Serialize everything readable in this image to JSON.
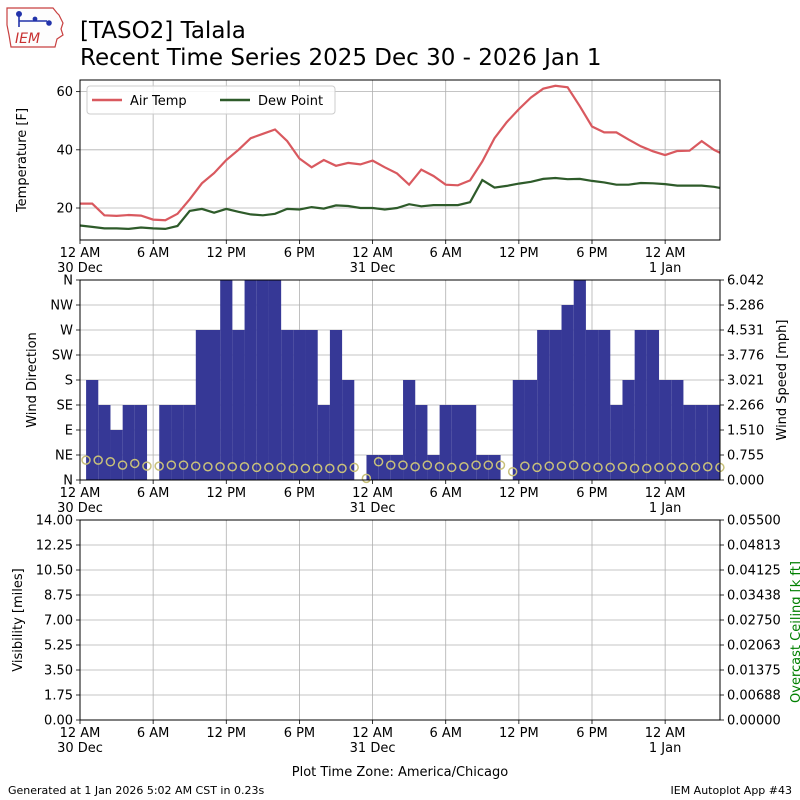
{
  "header": {
    "logo_text": "IEM",
    "title_line1": "[TASO2] Talala",
    "title_line2": "Recent Time Series 2025 Dec 30 - 2026 Jan 1"
  },
  "footer": {
    "generated": "Generated at 1 Jan 2026 5:02 AM CST in 0.23s",
    "app": "IEM Autoplot App #43"
  },
  "colors": {
    "air_temp": "#d9595f",
    "dew_point": "#2e5b2a",
    "wind_bar": "#363896",
    "wind_speed_marker": "#c8c07a",
    "ceiling_label": "#008000",
    "grid": "#b0b0b0"
  },
  "chart_data": [
    {
      "type": "line",
      "panel": "temperature",
      "ylabel": "Temperature [F]",
      "xlabel": "",
      "ylim": [
        9,
        64
      ],
      "xlim": [
        0,
        52.5
      ],
      "yticks": [
        20,
        40,
        60
      ],
      "xtick_labels": [
        {
          "h": 0,
          "label": "12 AM",
          "date": "30 Dec"
        },
        {
          "h": 6,
          "label": "6 AM"
        },
        {
          "h": 12,
          "label": "12 PM"
        },
        {
          "h": 18,
          "label": "6 PM"
        },
        {
          "h": 24,
          "label": "12 AM",
          "date": "31 Dec"
        },
        {
          "h": 30,
          "label": "6 AM"
        },
        {
          "h": 36,
          "label": "12 PM"
        },
        {
          "h": 42,
          "label": "6 PM"
        },
        {
          "h": 48,
          "label": "12 AM",
          "date": "1 Jan"
        }
      ],
      "grid": true,
      "legend": {
        "position": "top-left",
        "columns": 2
      },
      "series": [
        {
          "name": "Air Temp",
          "x": [
            0,
            1,
            2,
            3,
            4,
            5,
            6,
            7,
            8,
            9,
            10,
            11,
            12,
            13,
            14,
            15,
            16,
            17,
            18,
            19,
            20,
            21,
            22,
            23,
            24,
            25,
            26,
            27,
            28,
            29,
            30,
            31,
            32,
            33,
            34,
            35,
            36,
            37,
            38,
            39,
            40,
            41,
            42,
            43,
            44,
            45,
            46,
            47,
            48,
            49,
            50,
            51,
            52,
            52.5
          ],
          "y": [
            21.5,
            21.5,
            17.5,
            17.3,
            17.6,
            17.4,
            16,
            15.8,
            18,
            23,
            28.5,
            32,
            36.5,
            40,
            44,
            45.5,
            47,
            43,
            37,
            34,
            36.5,
            34.5,
            35.5,
            35,
            36.3,
            34,
            31.9,
            28,
            33.2,
            31,
            28,
            27.8,
            29.5,
            36,
            44,
            49.5,
            54,
            58,
            61,
            62,
            61.5,
            55,
            48,
            46,
            46,
            43.5,
            41.2,
            39.5,
            38.2,
            39.6,
            39.7,
            43,
            40,
            39
          ]
        },
        {
          "name": "Dew Point",
          "x": [
            0,
            1,
            2,
            3,
            4,
            5,
            6,
            7,
            8,
            9,
            10,
            11,
            12,
            13,
            14,
            15,
            16,
            17,
            18,
            19,
            20,
            21,
            22,
            23,
            24,
            25,
            26,
            27,
            28,
            29,
            30,
            31,
            32,
            33,
            34,
            35,
            36,
            37,
            38,
            39,
            40,
            41,
            42,
            43,
            44,
            45,
            46,
            47,
            48,
            49,
            50,
            51,
            52,
            52.5
          ],
          "y": [
            14,
            13.5,
            13,
            13,
            12.8,
            13.3,
            13,
            12.8,
            13.8,
            19,
            19.7,
            18.4,
            19.7,
            18.7,
            17.8,
            17.5,
            18,
            19.7,
            19.5,
            20.3,
            19.8,
            20.9,
            20.7,
            20,
            20,
            19.5,
            20,
            21.3,
            20.6,
            21,
            21,
            21,
            22,
            29.6,
            27,
            27.6,
            28.4,
            29,
            30,
            30.3,
            29.9,
            30,
            29.3,
            28.8,
            28,
            28,
            28.6,
            28.5,
            28.2,
            27.7,
            27.7,
            27.7,
            27.3,
            26.9
          ]
        }
      ]
    },
    {
      "type": "bar",
      "panel": "wind",
      "ylabel": "Wind Direction",
      "ylabel_right": "Wind Speed [mph]",
      "ylim": [
        0,
        360
      ],
      "ylim_right": [
        0,
        6.042
      ],
      "xlim": [
        0,
        52.5
      ],
      "yticks_left": [
        "N",
        "NE",
        "E",
        "SE",
        "S",
        "SW",
        "W",
        "NW",
        "N"
      ],
      "yticks_right": [
        "0.000",
        "0.755",
        "1.510",
        "2.266",
        "3.021",
        "3.776",
        "4.531",
        "5.286",
        "6.042"
      ],
      "grid": true,
      "bars": [
        {
          "x": 0,
          "dir": 0
        },
        {
          "x": 0.5,
          "dir": 180
        },
        {
          "x": 1.5,
          "dir": 135
        },
        {
          "x": 2.5,
          "dir": 90
        },
        {
          "x": 3.5,
          "dir": 135
        },
        {
          "x": 4.5,
          "dir": 135
        },
        {
          "x": 5.5,
          "dir": 0
        },
        {
          "x": 6.5,
          "dir": 135
        },
        {
          "x": 7.5,
          "dir": 135
        },
        {
          "x": 8.5,
          "dir": 135
        },
        {
          "x": 9.5,
          "dir": 270
        },
        {
          "x": 10.5,
          "dir": 270
        },
        {
          "x": 11.5,
          "dir": 360
        },
        {
          "x": 12.5,
          "dir": 270
        },
        {
          "x": 13.5,
          "dir": 360
        },
        {
          "x": 14.5,
          "dir": 360
        },
        {
          "x": 15.5,
          "dir": 360
        },
        {
          "x": 16.5,
          "dir": 270
        },
        {
          "x": 17.5,
          "dir": 270
        },
        {
          "x": 18.5,
          "dir": 270
        },
        {
          "x": 19.5,
          "dir": 135
        },
        {
          "x": 20.5,
          "dir": 270
        },
        {
          "x": 21.5,
          "dir": 180
        },
        {
          "x": 22.5,
          "dir": 0
        },
        {
          "x": 23.5,
          "dir": 45
        },
        {
          "x": 24.5,
          "dir": 45
        },
        {
          "x": 25.5,
          "dir": 45
        },
        {
          "x": 26.5,
          "dir": 180
        },
        {
          "x": 27.5,
          "dir": 135
        },
        {
          "x": 28.5,
          "dir": 45
        },
        {
          "x": 29.5,
          "dir": 135
        },
        {
          "x": 30.5,
          "dir": 135
        },
        {
          "x": 31.5,
          "dir": 135
        },
        {
          "x": 32.5,
          "dir": 45
        },
        {
          "x": 33.5,
          "dir": 45
        },
        {
          "x": 34.5,
          "dir": 0
        },
        {
          "x": 35.5,
          "dir": 180
        },
        {
          "x": 36.5,
          "dir": 180
        },
        {
          "x": 37.5,
          "dir": 270
        },
        {
          "x": 38.5,
          "dir": 270
        },
        {
          "x": 39.5,
          "dir": 315
        },
        {
          "x": 40.5,
          "dir": 360
        },
        {
          "x": 41.5,
          "dir": 270
        },
        {
          "x": 42.5,
          "dir": 270
        },
        {
          "x": 43.5,
          "dir": 135
        },
        {
          "x": 44.5,
          "dir": 180
        },
        {
          "x": 45.5,
          "dir": 270
        },
        {
          "x": 46.5,
          "dir": 270
        },
        {
          "x": 47.5,
          "dir": 180
        },
        {
          "x": 48.5,
          "dir": 180
        },
        {
          "x": 49.5,
          "dir": 135
        },
        {
          "x": 50.5,
          "dir": 135
        },
        {
          "x": 51.5,
          "dir": 135
        }
      ],
      "speed": {
        "x": [
          0,
          1,
          2,
          3,
          4,
          5,
          6,
          7,
          8,
          9,
          10,
          11,
          12,
          13,
          14,
          15,
          16,
          17,
          18,
          19,
          20,
          21,
          22,
          23,
          24,
          25,
          26,
          27,
          28,
          29,
          30,
          31,
          32,
          33,
          34,
          35,
          36,
          37,
          38,
          39,
          40,
          41,
          42,
          43,
          44,
          45,
          46,
          47,
          48,
          49,
          50,
          51,
          52
        ],
        "y": [
          0.6,
          0.6,
          0.55,
          0.45,
          0.5,
          0.42,
          0.42,
          0.45,
          0.45,
          0.42,
          0.4,
          0.4,
          0.4,
          0.4,
          0.38,
          0.38,
          0.38,
          0.35,
          0.35,
          0.35,
          0.35,
          0.35,
          0.38,
          0.05,
          0.55,
          0.45,
          0.45,
          0.4,
          0.45,
          0.4,
          0.38,
          0.4,
          0.45,
          0.45,
          0.45,
          0.25,
          0.42,
          0.38,
          0.42,
          0.42,
          0.45,
          0.4,
          0.38,
          0.38,
          0.4,
          0.35,
          0.35,
          0.38,
          0.38,
          0.38,
          0.38,
          0.4,
          0.38
        ]
      }
    },
    {
      "type": "line",
      "panel": "visibility",
      "ylabel": "Visibility [miles]",
      "ylabel_right": "Overcast Ceiling [k ft]",
      "ylim": [
        0,
        14
      ],
      "ylim_right": [
        0,
        0.055
      ],
      "xlim": [
        0,
        52.5
      ],
      "yticks_left": [
        "0.00",
        "1.75",
        "3.50",
        "5.25",
        "7.00",
        "8.75",
        "10.50",
        "12.25",
        "14.00"
      ],
      "yticks_right": [
        "0.00000",
        "0.00688",
        "0.01375",
        "0.02063",
        "0.02750",
        "0.03438",
        "0.04125",
        "0.04813",
        "0.05500"
      ],
      "xlabel": "Plot Time Zone: America/Chicago",
      "grid": true,
      "series": []
    }
  ]
}
